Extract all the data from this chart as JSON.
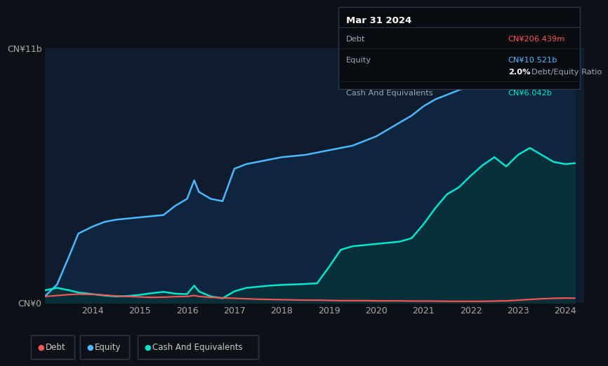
{
  "bg_color": "#0d1117",
  "plot_bg_color": "#0e1c2e",
  "ylabel_top": "CN¥11b",
  "ylabel_bottom": "CN¥0",
  "debt_color": "#ff5555",
  "equity_color": "#4db8ff",
  "cash_color": "#00e5cc",
  "tooltip": {
    "title": "Mar 31 2024",
    "debt_label": "Debt",
    "debt_value": "CN¥206.439m",
    "equity_label": "Equity",
    "equity_value": "CN¥10.521b",
    "ratio_value": "2.0%",
    "ratio_label": "Debt/Equity Ratio",
    "cash_label": "Cash And Equivalents",
    "cash_value": "CN¥6.042b"
  },
  "equity_data": {
    "x": [
      2013.0,
      2013.25,
      2013.5,
      2013.7,
      2014.0,
      2014.25,
      2014.5,
      2014.75,
      2015.0,
      2015.25,
      2015.5,
      2015.75,
      2016.0,
      2016.15,
      2016.25,
      2016.5,
      2016.75,
      2017.0,
      2017.25,
      2017.5,
      2017.75,
      2018.0,
      2018.25,
      2018.5,
      2018.75,
      2019.0,
      2019.25,
      2019.5,
      2019.75,
      2020.0,
      2020.25,
      2020.5,
      2020.75,
      2021.0,
      2021.25,
      2021.5,
      2021.75,
      2022.0,
      2022.25,
      2022.5,
      2022.75,
      2023.0,
      2023.25,
      2023.5,
      2023.75,
      2024.0,
      2024.2
    ],
    "y": [
      0.3,
      0.8,
      2.0,
      3.0,
      3.3,
      3.5,
      3.6,
      3.65,
      3.7,
      3.75,
      3.8,
      4.2,
      4.5,
      5.3,
      4.8,
      4.5,
      4.4,
      5.8,
      6.0,
      6.1,
      6.2,
      6.3,
      6.35,
      6.4,
      6.5,
      6.6,
      6.7,
      6.8,
      7.0,
      7.2,
      7.5,
      7.8,
      8.1,
      8.5,
      8.8,
      9.0,
      9.2,
      9.4,
      9.7,
      9.9,
      10.1,
      10.2,
      10.3,
      10.4,
      10.45,
      10.5,
      10.521
    ]
  },
  "cash_data": {
    "x": [
      2013.0,
      2013.25,
      2013.5,
      2013.7,
      2014.0,
      2014.25,
      2014.5,
      2014.75,
      2015.0,
      2015.25,
      2015.5,
      2015.75,
      2016.0,
      2016.15,
      2016.25,
      2016.5,
      2016.75,
      2017.0,
      2017.25,
      2017.5,
      2017.75,
      2018.0,
      2018.25,
      2018.5,
      2018.75,
      2019.0,
      2019.25,
      2019.5,
      2019.75,
      2020.0,
      2020.25,
      2020.5,
      2020.75,
      2021.0,
      2021.25,
      2021.5,
      2021.75,
      2022.0,
      2022.25,
      2022.5,
      2022.75,
      2023.0,
      2023.25,
      2023.5,
      2023.75,
      2024.0,
      2024.2
    ],
    "y": [
      0.55,
      0.65,
      0.55,
      0.45,
      0.38,
      0.32,
      0.28,
      0.3,
      0.35,
      0.42,
      0.48,
      0.4,
      0.38,
      0.75,
      0.5,
      0.28,
      0.2,
      0.5,
      0.65,
      0.7,
      0.75,
      0.78,
      0.8,
      0.82,
      0.85,
      1.55,
      2.3,
      2.45,
      2.5,
      2.55,
      2.6,
      2.65,
      2.8,
      3.4,
      4.1,
      4.7,
      5.0,
      5.5,
      5.95,
      6.3,
      5.9,
      6.4,
      6.7,
      6.4,
      6.1,
      6.0,
      6.042
    ]
  },
  "debt_data": {
    "x": [
      2013.0,
      2013.25,
      2013.5,
      2013.7,
      2014.0,
      2014.25,
      2014.5,
      2014.75,
      2015.0,
      2015.25,
      2015.5,
      2015.75,
      2016.0,
      2016.15,
      2016.25,
      2016.5,
      2016.75,
      2017.0,
      2017.25,
      2017.5,
      2017.75,
      2018.0,
      2018.25,
      2018.5,
      2018.75,
      2019.0,
      2019.25,
      2019.5,
      2019.75,
      2020.0,
      2020.25,
      2020.5,
      2020.75,
      2021.0,
      2021.25,
      2021.5,
      2021.75,
      2022.0,
      2022.25,
      2022.5,
      2022.75,
      2023.0,
      2023.25,
      2023.5,
      2023.75,
      2024.0,
      2024.2
    ],
    "y": [
      0.28,
      0.32,
      0.36,
      0.38,
      0.37,
      0.34,
      0.3,
      0.28,
      0.26,
      0.24,
      0.25,
      0.27,
      0.28,
      0.32,
      0.28,
      0.24,
      0.22,
      0.2,
      0.18,
      0.16,
      0.15,
      0.14,
      0.13,
      0.12,
      0.12,
      0.11,
      0.1,
      0.1,
      0.1,
      0.09,
      0.09,
      0.09,
      0.08,
      0.08,
      0.08,
      0.07,
      0.07,
      0.07,
      0.07,
      0.08,
      0.09,
      0.12,
      0.15,
      0.18,
      0.2,
      0.21,
      0.206
    ]
  },
  "ylim": [
    0,
    11
  ],
  "xlim": [
    2013.0,
    2024.4
  ]
}
